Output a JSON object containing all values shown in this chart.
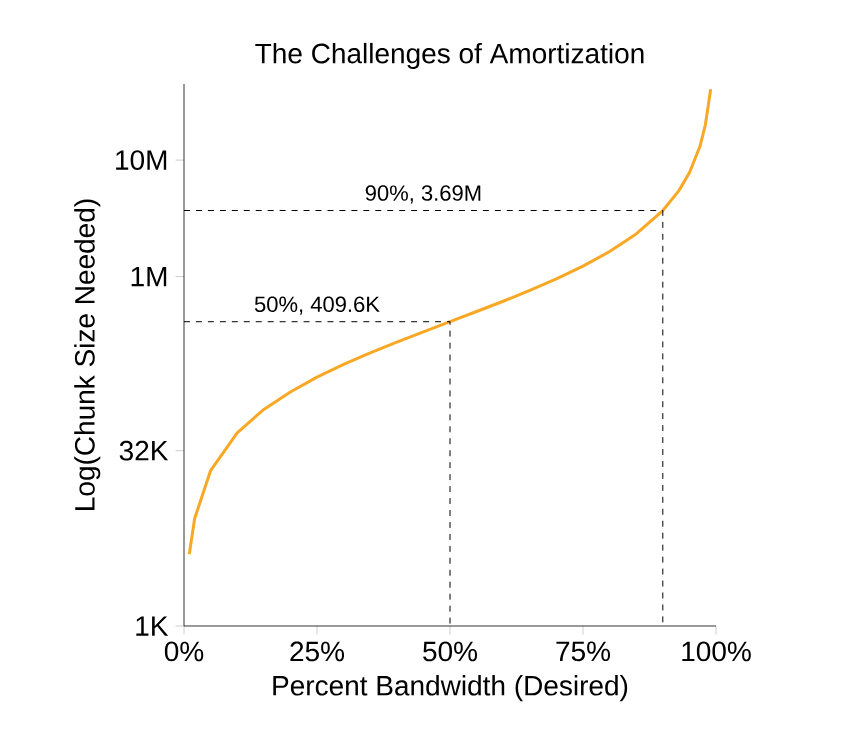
{
  "chart_data": {
    "type": "line",
    "title": "The Challenges of Amortization",
    "xlabel": "Percent Bandwidth (Desired)",
    "ylabel": "Log(Chunk Size Needed)",
    "series": [
      {
        "color": "#f9a825",
        "x": [
          1,
          2,
          5,
          10,
          15,
          20,
          25,
          30,
          35,
          40,
          45,
          50,
          55,
          60,
          65,
          70,
          75,
          80,
          85,
          90,
          93,
          95,
          97,
          98,
          99
        ],
        "values": [
          4140,
          8360,
          21600,
          45500,
          72300,
          102000,
          137000,
          176000,
          221000,
          273000,
          335000,
          409600,
          501000,
          614000,
          761000,
          956000,
          1230000,
          1640000,
          2320000,
          3690000,
          5440000,
          7780000,
          13200000,
          20100000,
          40600000
        ]
      },
      {
        "color": "#000000",
        "line_style": "dashed",
        "x": [
          0,
          50,
          50
        ],
        "values": [
          409600,
          409600,
          1000
        ]
      },
      {
        "color": "#000000",
        "line_style": "dashed",
        "x": [
          0,
          90,
          90
        ],
        "values": [
          3690000,
          3690000,
          1000
        ]
      }
    ],
    "log": "y",
    "xlim": [
      0,
      100
    ],
    "ylim": [
      1000,
      45000000
    ],
    "xticks": [
      {
        "value": 0,
        "label": "0%"
      },
      {
        "value": 25,
        "label": "25%"
      },
      {
        "value": 50,
        "label": "50%"
      },
      {
        "value": 75,
        "label": "75%"
      },
      {
        "value": 100,
        "label": "100%"
      }
    ],
    "yticks": [
      {
        "value": 1000,
        "label": "1K"
      },
      {
        "value": 32000,
        "label": "32K"
      },
      {
        "value": 1000000,
        "label": "1M"
      },
      {
        "value": 10000000,
        "label": "10M"
      }
    ],
    "annotations": [
      "50%, 409.6K",
      "90%, 3.69M"
    ]
  }
}
